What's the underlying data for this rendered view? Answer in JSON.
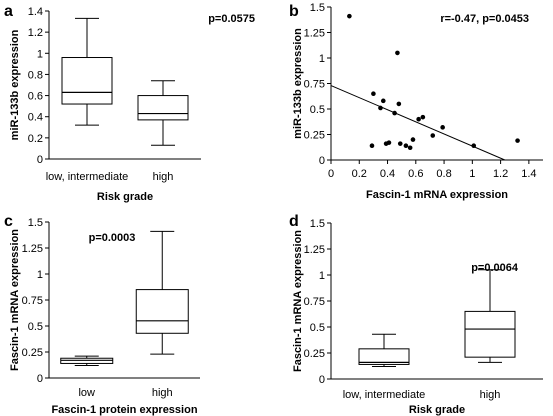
{
  "chart_data": [
    {
      "panel": "a",
      "type": "box",
      "xlabel": "Risk grade",
      "ylabel": "miR-133b expression",
      "ylim": [
        0,
        1.4
      ],
      "yticks": [
        "0",
        "0.2",
        "0.4",
        "0.6",
        "0.8",
        "1",
        "1.2",
        "1.4"
      ],
      "categories": [
        "low, intermediate",
        "high"
      ],
      "boxes": [
        {
          "min": 0.32,
          "q1": 0.52,
          "median": 0.63,
          "q3": 0.96,
          "max": 1.33
        },
        {
          "min": 0.13,
          "q1": 0.37,
          "median": 0.43,
          "q3": 0.6,
          "max": 0.74
        }
      ],
      "annotation": "p=0.0575"
    },
    {
      "panel": "b",
      "type": "scatter",
      "xlabel": "Fascin-1 mRNA expression",
      "ylabel": "miR-133b expression",
      "xlim": [
        0,
        1.5
      ],
      "ylim": [
        0,
        1.5
      ],
      "xticks": [
        "0",
        "0.2",
        "0.4",
        "0.6",
        "0.8",
        "1",
        "1.2",
        "1.4"
      ],
      "yticks": [
        "0",
        "0.25",
        "0.5",
        "0.75",
        "1",
        "1.25",
        "1.5"
      ],
      "points": [
        {
          "x": 0.13,
          "y": 1.41
        },
        {
          "x": 0.29,
          "y": 0.14
        },
        {
          "x": 0.3,
          "y": 0.65
        },
        {
          "x": 0.35,
          "y": 0.51
        },
        {
          "x": 0.37,
          "y": 0.58
        },
        {
          "x": 0.39,
          "y": 0.16
        },
        {
          "x": 0.41,
          "y": 0.17
        },
        {
          "x": 0.45,
          "y": 0.46
        },
        {
          "x": 0.47,
          "y": 1.05
        },
        {
          "x": 0.48,
          "y": 0.55
        },
        {
          "x": 0.49,
          "y": 0.16
        },
        {
          "x": 0.53,
          "y": 0.14
        },
        {
          "x": 0.56,
          "y": 0.12
        },
        {
          "x": 0.58,
          "y": 0.2
        },
        {
          "x": 0.62,
          "y": 0.4
        },
        {
          "x": 0.65,
          "y": 0.42
        },
        {
          "x": 0.72,
          "y": 0.24
        },
        {
          "x": 0.79,
          "y": 0.32
        },
        {
          "x": 1.01,
          "y": 0.14
        },
        {
          "x": 1.32,
          "y": 0.19
        }
      ],
      "fit_line": [
        {
          "x": 0,
          "y": 0.73
        },
        {
          "x": 1.23,
          "y": 0
        }
      ],
      "annotation": "r=-0.47, p=0.0453"
    },
    {
      "panel": "c",
      "type": "box",
      "xlabel": "Fascin-1 protein expression",
      "ylabel": "Fascin-1 mRNA expression",
      "ylim": [
        0,
        1.5
      ],
      "yticks": [
        "0",
        "0.25",
        "0.5",
        "0.75",
        "1",
        "1.25",
        "1.5"
      ],
      "categories": [
        "low",
        "high"
      ],
      "boxes": [
        {
          "min": 0.12,
          "q1": 0.14,
          "median": 0.17,
          "q3": 0.19,
          "max": 0.21
        },
        {
          "min": 0.23,
          "q1": 0.43,
          "median": 0.55,
          "q3": 0.85,
          "max": 1.41
        }
      ],
      "annotation": "p=0.0003"
    },
    {
      "panel": "d",
      "type": "box",
      "xlabel": "Risk grade",
      "ylabel": "Fascin-1 mRNA expression",
      "ylim": [
        0,
        1.5
      ],
      "yticks": [
        "0",
        "0.25",
        "0.5",
        "0.75",
        "1",
        "1.25",
        "1.5"
      ],
      "categories": [
        "low, intermediate",
        "high"
      ],
      "boxes": [
        {
          "min": 0.12,
          "q1": 0.14,
          "median": 0.16,
          "q3": 0.29,
          "max": 0.43
        },
        {
          "min": 0.16,
          "q1": 0.21,
          "median": 0.48,
          "q3": 0.65,
          "max": 1.05
        }
      ],
      "annotation": "p=0.0064"
    }
  ]
}
